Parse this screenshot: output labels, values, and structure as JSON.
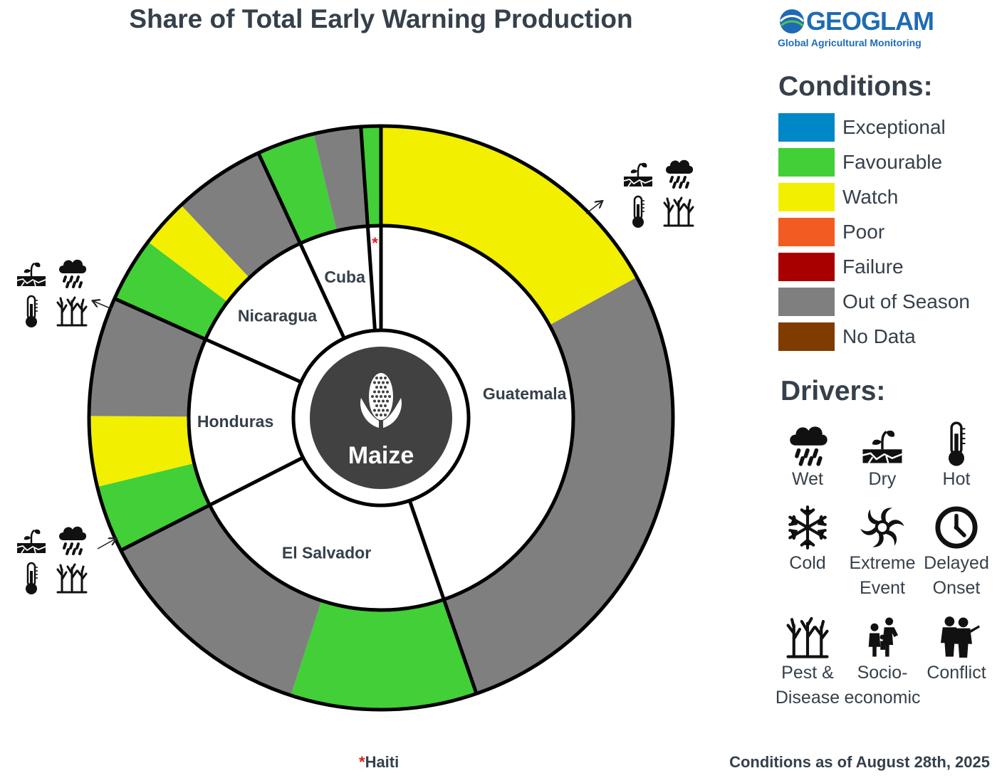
{
  "title": "Share of Total Early Warning Production",
  "logo": {
    "name": "GEOGLAM",
    "tagline": "Global Agricultural Monitoring"
  },
  "chart_data": {
    "type": "sunburst",
    "title": "Share of Total Early Warning Production",
    "center_label": "Maize",
    "unit": "share of total production (%)",
    "countries": [
      {
        "name": "Guatemala",
        "share": 44.7,
        "segments": [
          {
            "condition": "Watch",
            "value": 17.0
          },
          {
            "condition": "Out of Season",
            "value": 27.7
          }
        ]
      },
      {
        "name": "El Salvador",
        "share": 22.8,
        "segments": [
          {
            "condition": "Favourable",
            "value": 10.3
          },
          {
            "condition": "Out of Season",
            "value": 12.5
          }
        ]
      },
      {
        "name": "Honduras",
        "share": 14.2,
        "segments": [
          {
            "condition": "Favourable",
            "value": 3.7
          },
          {
            "condition": "Watch",
            "value": 3.9
          },
          {
            "condition": "Out of Season",
            "value": 6.6
          }
        ]
      },
      {
        "name": "Nicaragua",
        "share": 11.4,
        "segments": [
          {
            "condition": "Favourable",
            "value": 3.6
          },
          {
            "condition": "Watch",
            "value": 2.7
          },
          {
            "condition": "Out of Season",
            "value": 5.1
          }
        ]
      },
      {
        "name": "Cuba",
        "share": 5.8,
        "segments": [
          {
            "condition": "Favourable",
            "value": 3.2
          },
          {
            "condition": "Out of Season",
            "value": 2.6
          }
        ]
      },
      {
        "name": "Haiti",
        "share": 1.1,
        "footnote": true,
        "segments": [
          {
            "condition": "Favourable",
            "value": 1.1
          }
        ]
      }
    ],
    "driver_annotations": [
      {
        "country": "Guatemala",
        "drivers": [
          "Dry",
          "Wet",
          "Hot",
          "Pest & Disease"
        ]
      },
      {
        "country": "Nicaragua",
        "drivers": [
          "Dry",
          "Wet",
          "Hot",
          "Pest & Disease"
        ]
      },
      {
        "country": "Honduras",
        "drivers": [
          "Dry",
          "Wet",
          "Hot",
          "Pest & Disease"
        ]
      }
    ]
  },
  "conditions": {
    "heading": "Conditions:",
    "items": [
      {
        "label": "Exceptional",
        "color": "#0087c8"
      },
      {
        "label": "Favourable",
        "color": "#42cf37"
      },
      {
        "label": "Watch",
        "color": "#f2ef00"
      },
      {
        "label": "Poor",
        "color": "#f25c22"
      },
      {
        "label": "Failure",
        "color": "#a80000"
      },
      {
        "label": "Out of Season",
        "color": "#7f7f7f"
      },
      {
        "label": "No Data",
        "color": "#7f3b00"
      }
    ]
  },
  "drivers": {
    "heading": "Drivers:",
    "items": [
      {
        "label": "Wet",
        "icon": "wet-icon"
      },
      {
        "label": "Dry",
        "icon": "dry-icon"
      },
      {
        "label": "Hot",
        "icon": "hot-icon"
      },
      {
        "label": "Cold",
        "icon": "cold-icon"
      },
      {
        "label": "Extreme Event",
        "icon": "extreme-event-icon"
      },
      {
        "label": "Delayed Onset",
        "icon": "delayed-onset-icon"
      },
      {
        "label": "Pest & Disease",
        "icon": "pest-disease-icon"
      },
      {
        "label": "Socio-economic",
        "icon": "socio-economic-icon"
      },
      {
        "label": "Conflict",
        "icon": "conflict-icon"
      }
    ],
    "labels_display": [
      [
        "Wet"
      ],
      [
        "Dry"
      ],
      [
        "Hot"
      ],
      [
        "Cold"
      ],
      [
        "Extreme",
        "Event"
      ],
      [
        "Delayed",
        "Onset"
      ],
      [
        "Pest &",
        "Disease"
      ],
      [
        "Socio-",
        "economic"
      ],
      [
        "Conflict"
      ]
    ]
  },
  "footnote": {
    "marker": "*",
    "text": "Haiti"
  },
  "as_of": "Conditions as of August 28th, 2025"
}
